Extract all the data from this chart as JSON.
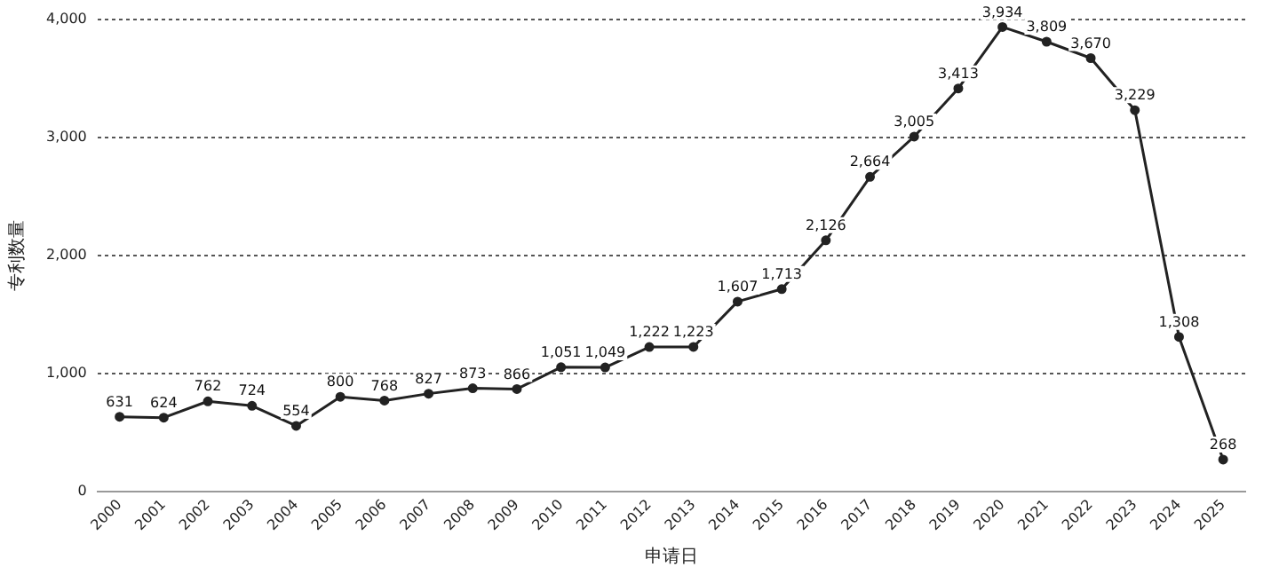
{
  "chart_data": {
    "type": "line",
    "xlabel": "申请日",
    "ylabel": "专利数量",
    "categories": [
      "2000",
      "2001",
      "2002",
      "2003",
      "2004",
      "2005",
      "2006",
      "2007",
      "2008",
      "2009",
      "2010",
      "2011",
      "2012",
      "2013",
      "2014",
      "2015",
      "2016",
      "2017",
      "2018",
      "2019",
      "2020",
      "2021",
      "2022",
      "2023",
      "2024",
      "2025"
    ],
    "series": [
      {
        "color": "#222222",
        "values": [
          631,
          624,
          762,
          724,
          554,
          800,
          768,
          827,
          873,
          866,
          1051,
          1049,
          1222,
          1223,
          1607,
          1713,
          2126,
          2664,
          3005,
          3413,
          3934,
          3809,
          3670,
          3229,
          1308,
          268
        ],
        "value_labels": [
          "631",
          "624",
          "762",
          "724",
          "554",
          "800",
          "768",
          "827",
          "873",
          "866",
          "1,051",
          "1,049",
          "1,222",
          "1,223",
          "1,607",
          "1,713",
          "2,126",
          "2,664",
          "3,005",
          "3,413",
          "3,934",
          "3,809",
          "3,670",
          "3,229",
          "1,308",
          "268"
        ]
      }
    ],
    "ylim": [
      0,
      4000
    ],
    "yticks": [
      {
        "value": 0,
        "label": "0"
      },
      {
        "value": 1000,
        "label": "1,000"
      },
      {
        "value": 2000,
        "label": "2,000"
      },
      {
        "value": 3000,
        "label": "3,000"
      },
      {
        "value": 4000,
        "label": "4,000"
      }
    ],
    "grid": "y",
    "marker": "circle",
    "line_style": "solid",
    "legend": false
  }
}
